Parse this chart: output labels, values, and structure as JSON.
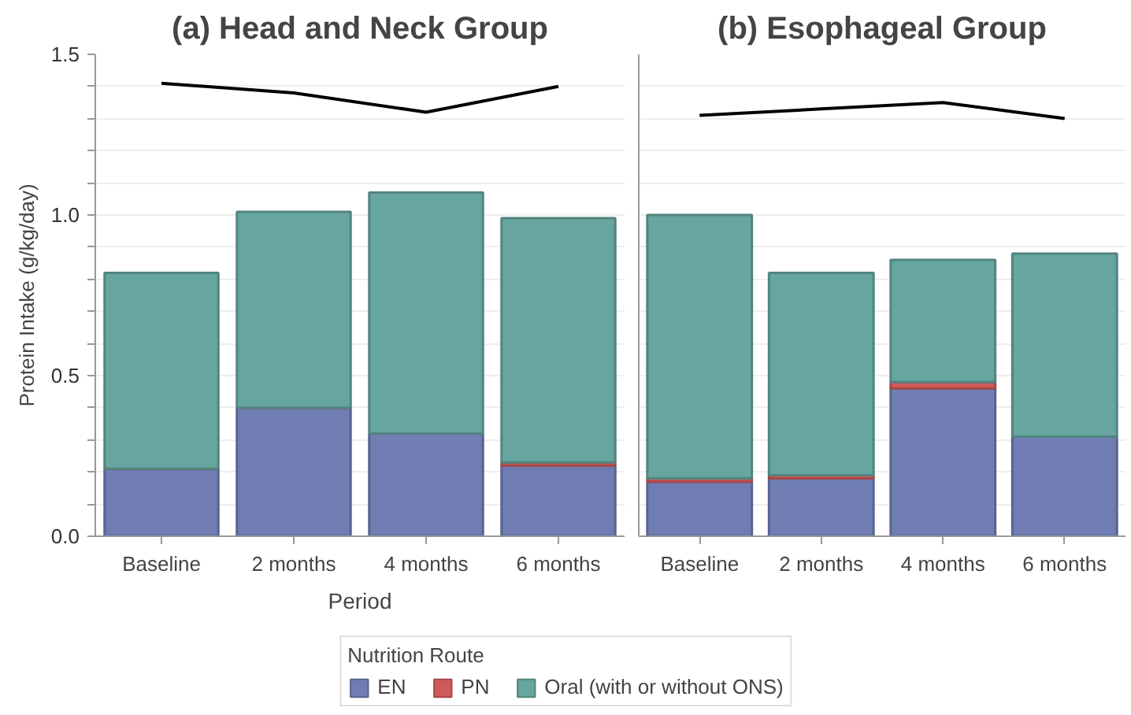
{
  "chart_data": [
    {
      "type": "bar",
      "title": "(a) Head and Neck Group",
      "xlabel": "Period",
      "ylabel": "Protein Intake (g/kg/day)",
      "legend_title": "Nutrition Route",
      "legend": "bottom",
      "stacked": true,
      "grid": "y",
      "categories": [
        "Baseline",
        "2 months",
        "4 months",
        "6 months"
      ],
      "ylim": [
        0,
        1.5
      ],
      "yticks": [
        {
          "value": 0,
          "label": "0.0"
        },
        {
          "value": 0.1,
          "label": null
        },
        {
          "value": 0.2,
          "label": null
        },
        {
          "value": 0.3,
          "label": null
        },
        {
          "value": 0.4,
          "label": null
        },
        {
          "value": 0.5,
          "label": "0.5"
        },
        {
          "value": 0.6,
          "label": null
        },
        {
          "value": 0.7,
          "label": null
        },
        {
          "value": 0.8,
          "label": null
        },
        {
          "value": 0.9,
          "label": null
        },
        {
          "value": 1,
          "label": "1.0"
        },
        {
          "value": 1.1,
          "label": null
        },
        {
          "value": 1.2,
          "label": null
        },
        {
          "value": 1.3,
          "label": null
        },
        {
          "value": 1.4,
          "label": null
        },
        {
          "value": 1.5,
          "label": "1.5"
        }
      ],
      "series": [
        {
          "name": "EN",
          "color": "#6f7db3",
          "values": [
            0.21,
            0.4,
            0.32,
            0.22
          ]
        },
        {
          "name": "PN",
          "color": "#d05a5a",
          "values": [
            0,
            0,
            0,
            0.01
          ]
        },
        {
          "name": "Oral (with or without ONS)",
          "color": "#67a59f",
          "values": [
            0.61,
            0.61,
            0.75,
            0.76
          ]
        },
        {
          "type": "line",
          "color": "#000000",
          "values": [
            1.41,
            1.38,
            1.32,
            1.4
          ]
        }
      ]
    },
    {
      "type": "bar",
      "title": "(b) Esophageal Group",
      "stacked": true,
      "grid": "y",
      "tick_labels": "x",
      "categories": [
        "Baseline",
        "2 months",
        "4 months",
        "6 months"
      ],
      "ylim": [
        0,
        1.5
      ],
      "yticks": [
        {
          "value": 0,
          "label": null
        },
        {
          "value": 0.1,
          "label": null
        },
        {
          "value": 0.2,
          "label": null
        },
        {
          "value": 0.3,
          "label": null
        },
        {
          "value": 0.4,
          "label": null
        },
        {
          "value": 0.5,
          "label": null
        },
        {
          "value": 0.6,
          "label": null
        },
        {
          "value": 0.7,
          "label": null
        },
        {
          "value": 0.8,
          "label": null
        },
        {
          "value": 0.9,
          "label": null
        },
        {
          "value": 1,
          "label": null
        },
        {
          "value": 1.1,
          "label": null
        },
        {
          "value": 1.2,
          "label": null
        },
        {
          "value": 1.3,
          "label": null
        },
        {
          "value": 1.4,
          "label": null
        },
        {
          "value": 1.5,
          "label": null
        }
      ],
      "series": [
        {
          "color": "#6f7db3",
          "values": [
            0.17,
            0.18,
            0.46,
            0.31
          ]
        },
        {
          "color": "#d05a5a",
          "values": [
            0.01,
            0.01,
            0.02,
            0
          ]
        },
        {
          "color": "#67a59f",
          "values": [
            0.82,
            0.63,
            0.38,
            0.57
          ]
        },
        {
          "type": "line",
          "color": "#000000",
          "values": [
            1.31,
            1.33,
            1.35,
            1.3
          ]
        }
      ]
    }
  ]
}
